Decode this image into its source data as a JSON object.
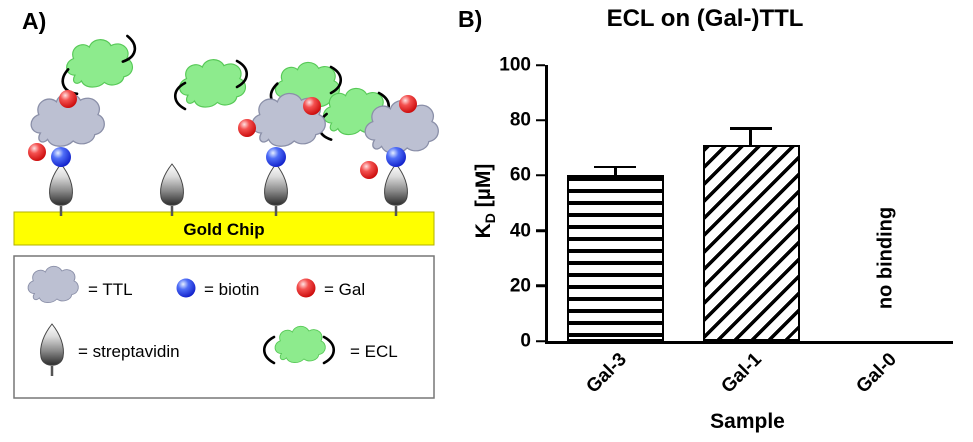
{
  "panelA": {
    "label": "A)",
    "gold_chip_label": "Gold Chip",
    "legend": {
      "items": [
        {
          "label": "= TTL"
        },
        {
          "label": "= biotin"
        },
        {
          "label": "= Gal"
        },
        {
          "label": "= streptavidin"
        },
        {
          "label": "= ECL"
        }
      ]
    },
    "colors": {
      "gold": "#ffff00",
      "ttl_fill": "#bcc0d2",
      "ecl_fill": "#8deb8d",
      "biotin_fill": "#2244ee",
      "gal_fill": "#e02020"
    }
  },
  "panelB": {
    "label": "B)",
    "ylabel_parts": {
      "main": "K",
      "sub": "D",
      "rest": " [µM]"
    }
  },
  "chart_data": {
    "type": "bar",
    "title": "ECL on (Gal-)TTL",
    "xlabel": "Sample",
    "ylabel": "K_D [µM]",
    "ylim": [
      0,
      100
    ],
    "yticks": [
      0,
      20,
      40,
      60,
      80,
      100
    ],
    "categories": [
      "Gal-3",
      "Gal-1",
      "Gal-0"
    ],
    "values": [
      60,
      71,
      null
    ],
    "errors": [
      3.5,
      6.5,
      null
    ],
    "bar_patterns": [
      "horizontal-stripes",
      "diagonal-stripes",
      "none"
    ],
    "annotations": [
      {
        "category": "Gal-0",
        "text": "no binding"
      }
    ],
    "grid": false,
    "legend_position": "none"
  }
}
